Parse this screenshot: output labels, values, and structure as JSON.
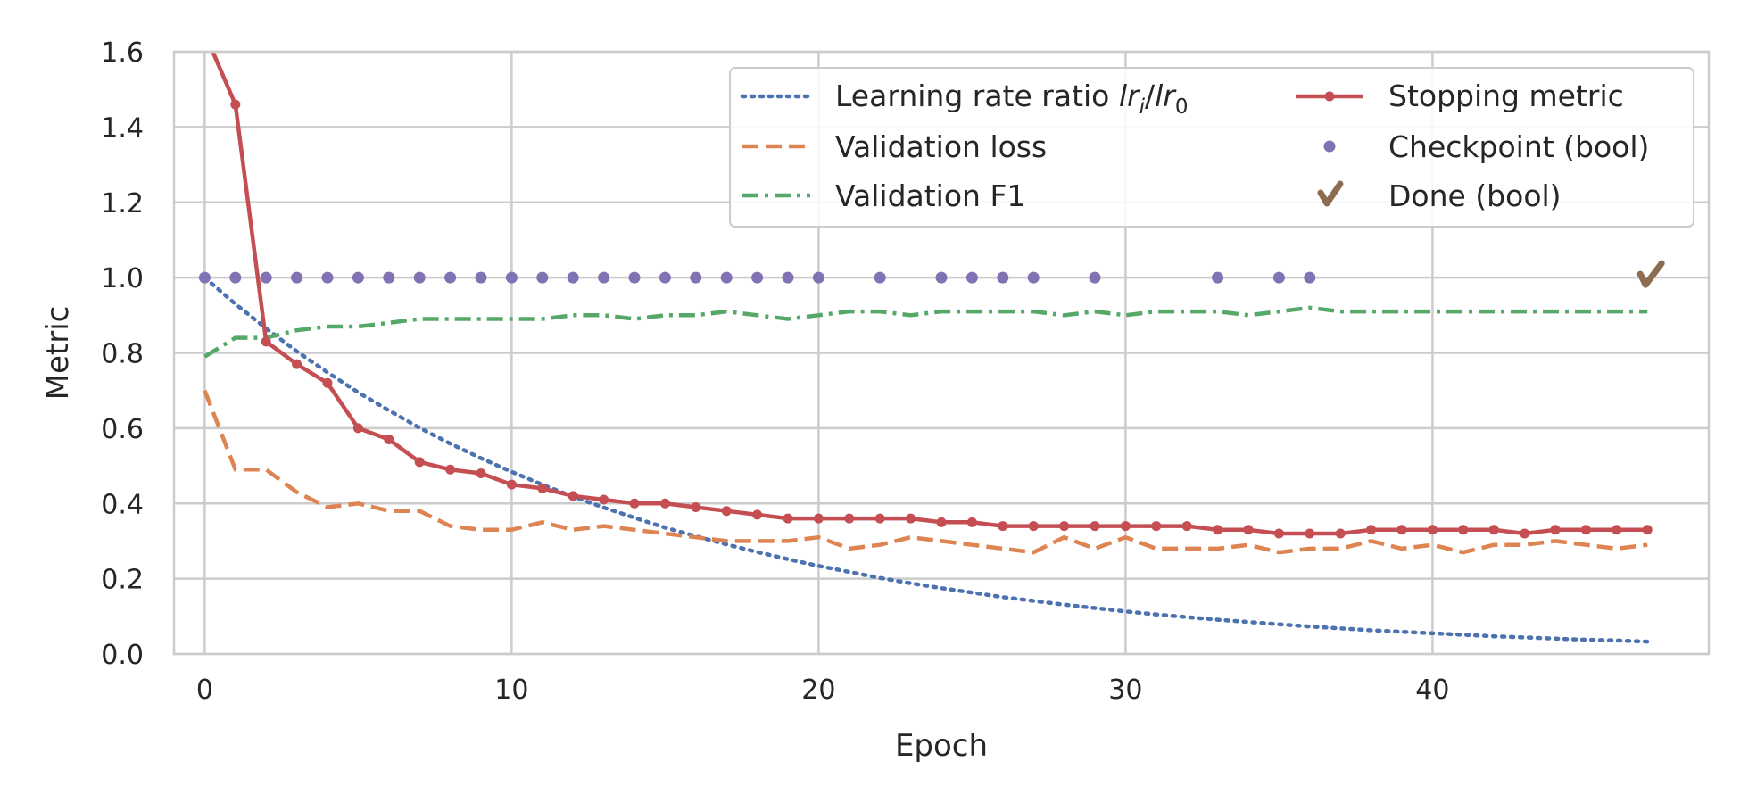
{
  "chart_data": {
    "type": "line",
    "title": "",
    "xlabel": "Epoch",
    "ylabel": "Metric",
    "xlim": [
      -1,
      49
    ],
    "ylim": [
      0,
      1.6
    ],
    "xticks": [
      0,
      10,
      20,
      30,
      40
    ],
    "yticks": [
      0.0,
      0.2,
      0.4,
      0.6,
      0.8,
      1.0,
      1.2,
      1.4,
      1.6
    ],
    "grid": true,
    "legend_position": "upper-right",
    "colors": {
      "lr": "#4c72b0",
      "loss": "#dd8452",
      "f1": "#55a868",
      "stop": "#c44e52",
      "ckpt": "#8172b3",
      "done": "#8c6d4f"
    },
    "legend": {
      "lr_prefix": "Learning rate ratio ",
      "lr_var1": "lr",
      "lr_sub1": "i",
      "lr_slash": "/",
      "lr_var2": "lr",
      "lr_sub2": "0",
      "loss": "Validation loss",
      "f1": "Validation F1",
      "stop": "Stopping metric",
      "ckpt": "Checkpoint (bool)",
      "done": "Done (bool)"
    },
    "x": [
      0,
      1,
      2,
      3,
      4,
      5,
      6,
      7,
      8,
      9,
      10,
      11,
      12,
      13,
      14,
      15,
      16,
      17,
      18,
      19,
      20,
      21,
      22,
      23,
      24,
      25,
      26,
      27,
      28,
      29,
      30,
      31,
      32,
      33,
      34,
      35,
      36,
      37,
      38,
      39,
      40,
      41,
      42,
      43,
      44,
      45,
      46,
      47
    ],
    "series": [
      {
        "key": "lr",
        "style": "dotted",
        "values": [
          1.0,
          0.93,
          0.865,
          0.804,
          0.748,
          0.695,
          0.647,
          0.601,
          0.559,
          0.52,
          0.484,
          0.45,
          0.418,
          0.389,
          0.362,
          0.336,
          0.313,
          0.291,
          0.271,
          0.252,
          0.234,
          0.218,
          0.202,
          0.188,
          0.175,
          0.163,
          0.151,
          0.141,
          0.131,
          0.122,
          0.113,
          0.105,
          0.098,
          0.091,
          0.085,
          0.079,
          0.073,
          0.068,
          0.063,
          0.059,
          0.055,
          0.051,
          0.047,
          0.044,
          0.041,
          0.038,
          0.036,
          0.033
        ]
      },
      {
        "key": "loss",
        "style": "dashed",
        "values": [
          0.7,
          0.49,
          0.49,
          0.43,
          0.39,
          0.4,
          0.38,
          0.38,
          0.34,
          0.33,
          0.33,
          0.35,
          0.33,
          0.34,
          0.33,
          0.32,
          0.31,
          0.3,
          0.3,
          0.3,
          0.31,
          0.28,
          0.29,
          0.31,
          0.3,
          0.29,
          0.28,
          0.27,
          0.31,
          0.28,
          0.31,
          0.28,
          0.28,
          0.28,
          0.29,
          0.27,
          0.28,
          0.28,
          0.3,
          0.28,
          0.29,
          0.27,
          0.29,
          0.29,
          0.3,
          0.29,
          0.28,
          0.29
        ]
      },
      {
        "key": "f1",
        "style": "dashdot",
        "values": [
          0.79,
          0.84,
          0.84,
          0.86,
          0.87,
          0.87,
          0.88,
          0.89,
          0.89,
          0.89,
          0.89,
          0.89,
          0.9,
          0.9,
          0.89,
          0.9,
          0.9,
          0.91,
          0.9,
          0.89,
          0.9,
          0.91,
          0.91,
          0.9,
          0.91,
          0.91,
          0.91,
          0.91,
          0.9,
          0.91,
          0.9,
          0.91,
          0.91,
          0.91,
          0.9,
          0.91,
          0.92,
          0.91,
          0.91,
          0.91,
          0.91,
          0.91,
          0.91,
          0.91,
          0.91,
          0.91,
          0.91,
          0.91
        ]
      },
      {
        "key": "stop",
        "style": "solid-marker",
        "values": [
          1.65,
          1.46,
          0.83,
          0.77,
          0.72,
          0.6,
          0.57,
          0.51,
          0.49,
          0.48,
          0.45,
          0.44,
          0.42,
          0.41,
          0.4,
          0.4,
          0.39,
          0.38,
          0.37,
          0.36,
          0.36,
          0.36,
          0.36,
          0.36,
          0.35,
          0.35,
          0.34,
          0.34,
          0.34,
          0.34,
          0.34,
          0.34,
          0.34,
          0.33,
          0.33,
          0.32,
          0.32,
          0.32,
          0.33,
          0.33,
          0.33,
          0.33,
          0.33,
          0.32,
          0.33,
          0.33,
          0.33,
          0.33
        ]
      }
    ],
    "checkpoint_epochs": [
      0,
      1,
      2,
      3,
      4,
      5,
      6,
      7,
      8,
      9,
      10,
      11,
      12,
      13,
      14,
      15,
      16,
      17,
      18,
      19,
      20,
      22,
      24,
      25,
      26,
      27,
      29,
      33,
      35,
      36
    ],
    "checkpoint_value": 1.0,
    "done_epoch": 47,
    "done_value": 1.0,
    "done_glyph": "✔"
  }
}
